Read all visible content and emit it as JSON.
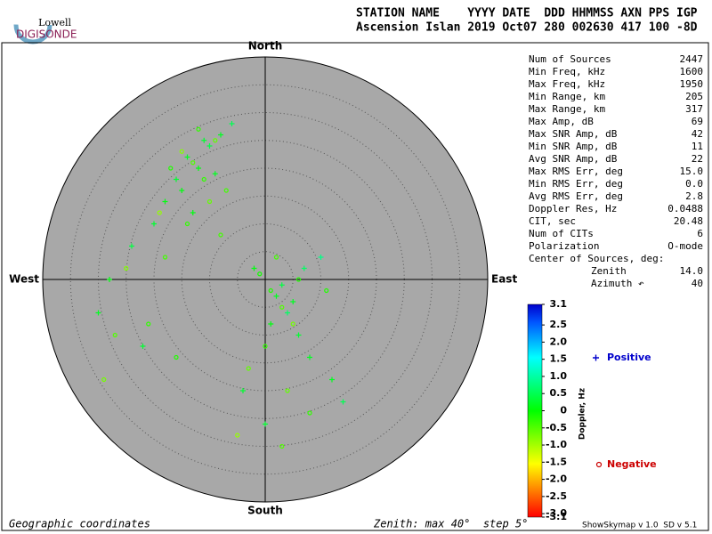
{
  "logo": {
    "top": "Lowell",
    "bottom": "DIGISONDE"
  },
  "header": {
    "labels": "STATION NAME    YYYY DATE  DDD HHMMSS AXN PPS IGP",
    "values": "Ascension Islan 2019 Oct07 280 002630 417 100 -8D"
  },
  "chart_data": {
    "type": "skymap",
    "directions": {
      "north": "North",
      "south": "South",
      "east": "East",
      "west": "West"
    },
    "zenith_max": 40,
    "zenith_step": 5,
    "series": [
      {
        "name": "Positive",
        "color": "#0000cc",
        "x": [
          -14,
          -12,
          -10,
          -16,
          -8,
          -18,
          -20,
          -6,
          2,
          4,
          -2,
          6,
          8,
          -24,
          -28,
          -4,
          10,
          12,
          -15,
          -11,
          -9,
          3,
          1,
          5,
          -22,
          14,
          -30,
          -13,
          0,
          7
        ],
        "y": [
          22,
          20,
          24,
          18,
          26,
          14,
          10,
          28,
          -3,
          -6,
          2,
          -10,
          -14,
          6,
          0,
          -20,
          4,
          -18,
          16,
          25,
          19,
          -1,
          -8,
          -4,
          -12,
          -22,
          -6,
          12,
          -26,
          2
        ],
        "values": [
          0.2,
          0.1,
          0.4,
          0.3,
          0.2,
          0.1,
          0.3,
          0.5,
          0.2,
          0.6,
          0.1,
          0.3,
          0.2,
          0.4,
          0.1,
          0.3,
          0.8,
          0.2,
          0.1,
          0.3,
          0.2,
          0.4,
          0.1,
          0.2,
          0.3,
          0.5,
          0.2,
          0.1,
          0.3,
          0.6
        ]
      },
      {
        "name": "Negative",
        "color": "#cc0000",
        "x": [
          -13,
          -11,
          -15,
          -17,
          -9,
          -7,
          -19,
          -12,
          1,
          3,
          -1,
          5,
          0,
          2,
          6,
          -3,
          -25,
          -21,
          -27,
          -16,
          -8,
          4,
          8,
          -5,
          11,
          -29,
          -18,
          -14,
          3,
          -10
        ],
        "y": [
          21,
          18,
          23,
          20,
          25,
          16,
          12,
          27,
          -2,
          -5,
          1,
          -8,
          -12,
          4,
          0,
          -16,
          2,
          -8,
          -10,
          -14,
          8,
          -20,
          -24,
          -28,
          -2,
          -18,
          4,
          10,
          -30,
          14
        ],
        "values": [
          -0.5,
          -0.3,
          -0.8,
          -0.2,
          -0.6,
          -0.4,
          -0.9,
          -0.3,
          -0.2,
          -0.5,
          -0.1,
          -0.7,
          -0.3,
          -0.4,
          -0.2,
          -0.6,
          -0.8,
          -0.3,
          -0.5,
          -0.2,
          -0.4,
          -0.6,
          -0.3,
          -0.9,
          -0.2,
          -0.7,
          -0.4,
          -0.3,
          -0.5,
          -0.6
        ]
      }
    ],
    "colorbar": {
      "label": "Doppler, Hz",
      "lim": [
        -3.1,
        3.1
      ],
      "ticks": [
        3.1,
        2.5,
        {
          "value": 2,
          "label": "2.0"
        },
        1.5,
        {
          "value": 1,
          "label": "1.0"
        },
        0.5,
        0,
        -0.5,
        {
          "value": -1,
          "label": "-1.0"
        },
        -1.5,
        {
          "value": -2,
          "label": "-2.0"
        },
        -2.5,
        {
          "value": -3,
          "label": "-3.0"
        },
        -3.1
      ]
    }
  },
  "stats": [
    [
      "Num of Sources",
      "2447"
    ],
    [
      "Min Freq, kHz",
      "1600"
    ],
    [
      "Max Freq, kHz",
      "1950"
    ],
    [
      "Min Range, km",
      "205"
    ],
    [
      "Max Range, km",
      "317"
    ],
    [
      "Max Amp, dB",
      "69"
    ],
    [
      "Max SNR Amp, dB",
      "42"
    ],
    [
      "Min SNR Amp, dB",
      "11"
    ],
    [
      "Avg SNR Amp, dB",
      "22"
    ],
    [
      "Max RMS Err, deg",
      "15.0"
    ],
    [
      "Min RMS Err, deg",
      "0.0"
    ],
    [
      "Avg RMS Err, deg",
      "2.8"
    ],
    [
      "Doppler Res, Hz",
      "0.0488"
    ],
    [
      "CIT, sec",
      "20.48"
    ],
    [
      "Num of CITs",
      "6"
    ],
    [
      "Polarization",
      "O-mode"
    ],
    [
      "Center of Sources, deg:",
      ""
    ],
    [
      "Zenith",
      "14.0"
    ],
    [
      "Azimuth ↶",
      "40"
    ]
  ],
  "footer": {
    "left": "Geographic coordinates",
    "center": "Zenith: max 40°  step 5°",
    "right": "ShowSkymap v 1.0  SD v 5.1"
  }
}
